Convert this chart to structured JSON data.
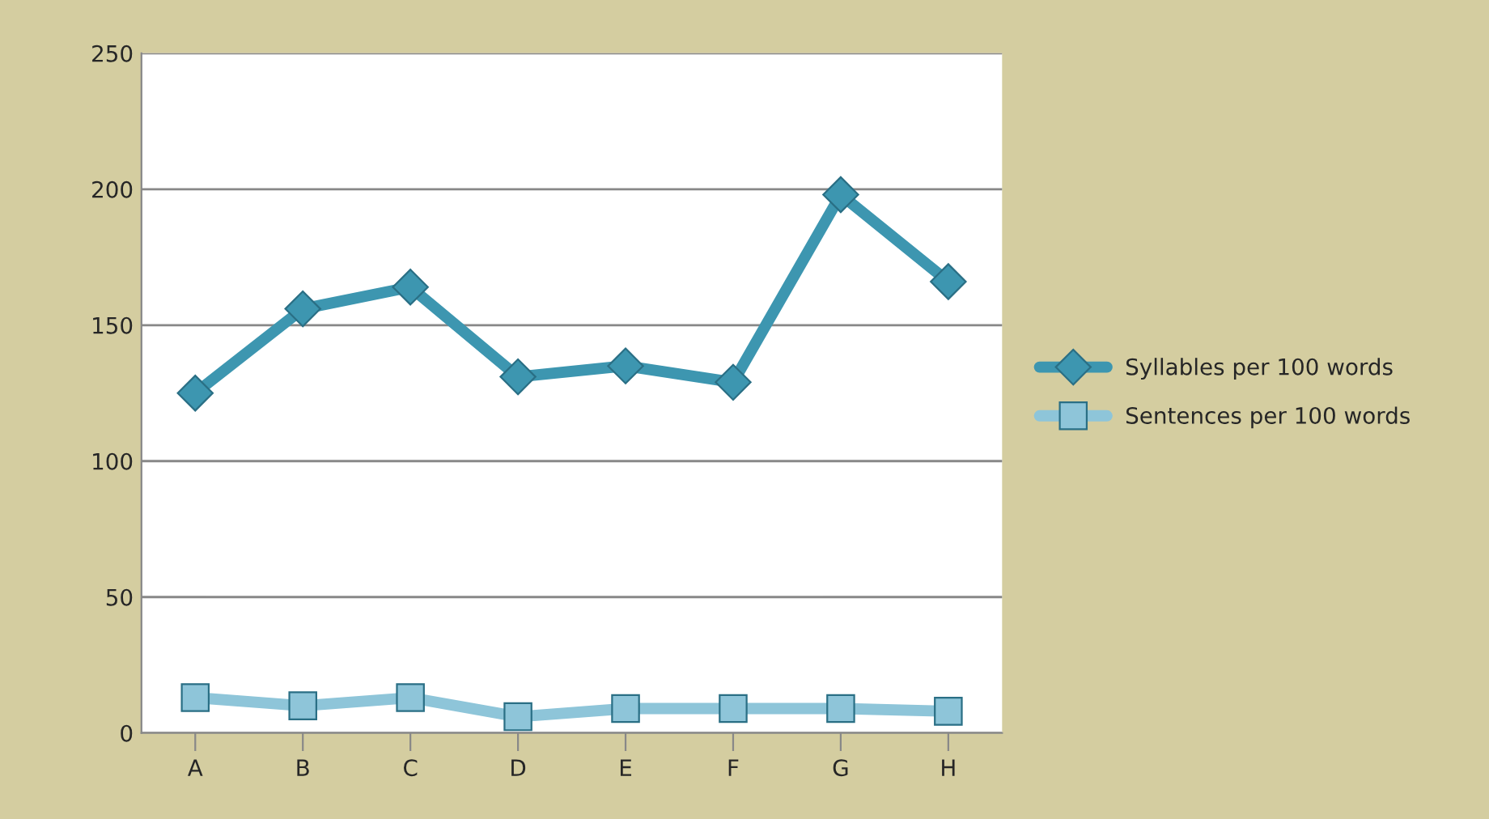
{
  "chart_data": {
    "type": "line",
    "categories": [
      "A",
      "B",
      "C",
      "D",
      "E",
      "F",
      "G",
      "H"
    ],
    "series": [
      {
        "name": "Syllables per 100 words",
        "color": "#3d96b0",
        "marker": "diamond",
        "values": [
          125,
          156,
          164,
          131,
          135,
          129,
          198,
          166
        ]
      },
      {
        "name": "Sentences per 100 words",
        "color": "#8ec5d9",
        "marker": "square",
        "values": [
          13,
          10,
          13,
          6,
          9,
          9,
          9,
          8
        ]
      }
    ],
    "ylim": [
      0,
      250
    ],
    "yticks": [
      0,
      50,
      100,
      150,
      200,
      250
    ],
    "grid": "y",
    "legend": "right"
  }
}
